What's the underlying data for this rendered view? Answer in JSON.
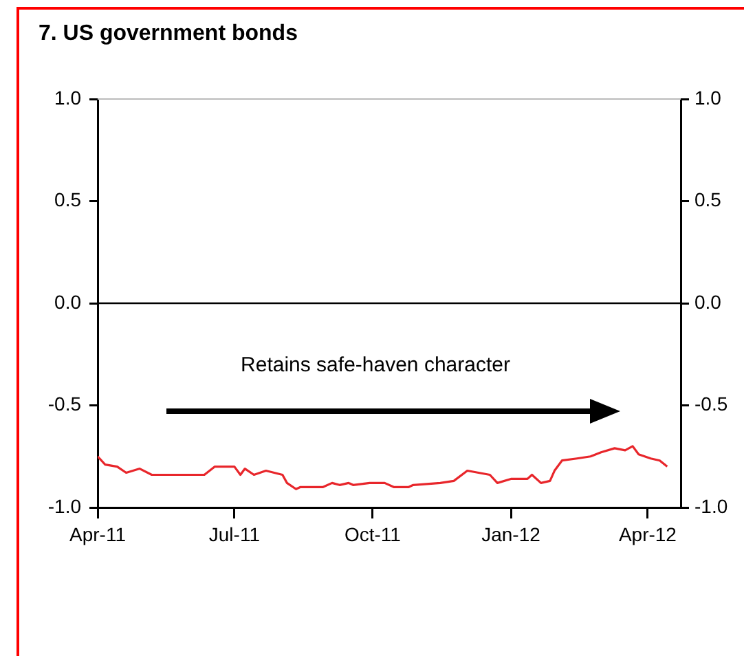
{
  "chart_data": {
    "type": "line",
    "title": "7. US government bonds",
    "x": [
      "2011-04-01",
      "2011-04-06",
      "2011-04-14",
      "2011-04-20",
      "2011-04-29",
      "2011-05-07",
      "2011-06-11",
      "2011-06-18",
      "2011-07-01",
      "2011-07-05",
      "2011-07-08",
      "2011-07-14",
      "2011-07-22",
      "2011-08-02",
      "2011-08-05",
      "2011-08-11",
      "2011-08-14",
      "2011-08-29",
      "2011-09-04",
      "2011-09-09",
      "2011-09-15",
      "2011-09-18",
      "2011-09-29",
      "2011-10-09",
      "2011-10-15",
      "2011-10-25",
      "2011-10-28",
      "2011-11-15",
      "2011-11-24",
      "2011-12-03",
      "2011-12-18",
      "2011-12-23",
      "2012-01-01",
      "2012-01-12",
      "2012-01-15",
      "2012-01-21",
      "2012-01-27",
      "2012-01-30",
      "2012-02-04",
      "2012-02-14",
      "2012-02-23",
      "2012-03-01",
      "2012-03-10",
      "2012-03-17",
      "2012-03-22",
      "2012-03-26",
      "2012-04-03",
      "2012-04-09",
      "2012-04-14"
    ],
    "series": [
      {
        "color": "#e8262b",
        "values": [
          -0.75,
          -0.79,
          -0.8,
          -0.83,
          -0.81,
          -0.84,
          -0.84,
          -0.8,
          -0.8,
          -0.84,
          -0.81,
          -0.84,
          -0.82,
          -0.84,
          -0.88,
          -0.91,
          -0.9,
          -0.9,
          -0.88,
          -0.89,
          -0.88,
          -0.89,
          -0.88,
          -0.88,
          -0.9,
          -0.9,
          -0.89,
          -0.88,
          -0.87,
          -0.82,
          -0.84,
          -0.88,
          -0.86,
          -0.86,
          -0.84,
          -0.88,
          -0.87,
          -0.82,
          -0.77,
          -0.76,
          -0.75,
          -0.73,
          -0.71,
          -0.72,
          -0.7,
          -0.74,
          -0.76,
          -0.77,
          -0.8
        ]
      }
    ],
    "xlim": [
      "2011-04-01",
      "2012-04-23"
    ],
    "xticks": [
      {
        "value": "2011-04-01",
        "label": "Apr-11"
      },
      {
        "value": "2011-07-01",
        "label": "Jul-11"
      },
      {
        "value": "2011-10-01",
        "label": "Oct-11"
      },
      {
        "value": "2012-01-01",
        "label": "Jan-12"
      },
      {
        "value": "2012-04-01",
        "label": "Apr-12"
      }
    ],
    "ylim": [
      -1,
      1
    ],
    "yticks": [
      {
        "value": -1,
        "label": "-1.0"
      },
      {
        "value": -0.5,
        "label": "-0.5"
      },
      {
        "value": 0,
        "label": "0.0"
      },
      {
        "value": 0.5,
        "label": "0.5"
      },
      {
        "value": 1,
        "label": "1.0"
      }
    ],
    "y2lim": [
      -1,
      1
    ],
    "y2ticks": [
      {
        "value": -1,
        "label": "-1.0"
      },
      {
        "value": -0.5,
        "label": "-0.5"
      },
      {
        "value": 0,
        "label": "0.0"
      },
      {
        "value": 0.5,
        "label": "0.5"
      },
      {
        "value": 1,
        "label": "1.0"
      }
    ],
    "ref_lines": [
      {
        "axis": "y",
        "value": 0,
        "color": "#000000"
      }
    ],
    "annotations": [
      "Retains safe-haven character"
    ],
    "grid": false,
    "legend": false,
    "marker": "none",
    "line_style": "solid"
  }
}
